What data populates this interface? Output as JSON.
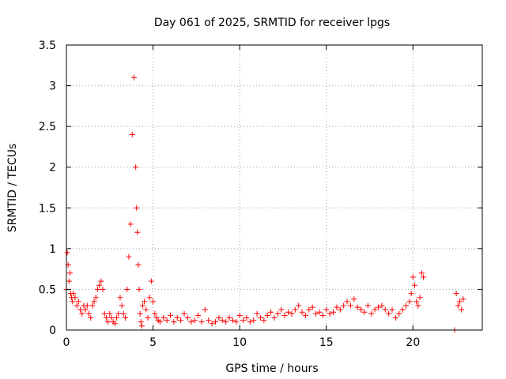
{
  "chart_data": {
    "type": "scatter",
    "title": "Day 061 of 2025, SRMTID for receiver lpgs",
    "xlabel": "GPS time / hours",
    "ylabel": "SRMTID / TECUs",
    "xlim": [
      0,
      24
    ],
    "ylim": [
      0,
      3.5
    ],
    "xticks": [
      0,
      5,
      10,
      15,
      20
    ],
    "yticks": [
      0,
      0.5,
      1,
      1.5,
      2,
      2.5,
      3,
      3.5
    ],
    "xtick_labels": [
      "0",
      "5",
      "10",
      "15",
      "20"
    ],
    "ytick_labels": [
      "0",
      "0.5",
      "1",
      "1.5",
      "2",
      "2.5",
      "3",
      "3.5"
    ],
    "grid": true,
    "marker": "+",
    "color": "#ff0000",
    "series": [
      {
        "name": "lpgs",
        "x": [
          0.0,
          0.05,
          0.1,
          0.15,
          0.2,
          0.25,
          0.3,
          0.35,
          0.4,
          0.5,
          0.6,
          0.7,
          0.8,
          0.9,
          1.0,
          1.1,
          1.2,
          1.3,
          1.4,
          1.5,
          1.6,
          1.7,
          1.8,
          1.9,
          2.0,
          2.1,
          2.2,
          2.3,
          2.4,
          2.5,
          2.6,
          2.7,
          2.8,
          2.9,
          3.0,
          3.1,
          3.2,
          3.3,
          3.4,
          3.5,
          3.6,
          3.7,
          3.8,
          3.9,
          4.0,
          4.05,
          4.1,
          4.15,
          4.2,
          4.25,
          4.3,
          4.35,
          4.4,
          4.5,
          4.6,
          4.7,
          4.8,
          4.9,
          5.0,
          5.1,
          5.2,
          5.3,
          5.4,
          5.6,
          5.8,
          6.0,
          6.2,
          6.4,
          6.6,
          6.8,
          7.0,
          7.2,
          7.4,
          7.6,
          7.8,
          8.0,
          8.2,
          8.4,
          8.6,
          8.8,
          9.0,
          9.2,
          9.4,
          9.6,
          9.8,
          10.0,
          10.2,
          10.4,
          10.6,
          10.8,
          11.0,
          11.2,
          11.4,
          11.6,
          11.8,
          12.0,
          12.2,
          12.4,
          12.6,
          12.8,
          13.0,
          13.2,
          13.4,
          13.6,
          13.8,
          14.0,
          14.2,
          14.4,
          14.6,
          14.8,
          15.0,
          15.2,
          15.4,
          15.6,
          15.8,
          16.0,
          16.2,
          16.4,
          16.6,
          16.8,
          17.0,
          17.2,
          17.4,
          17.6,
          17.8,
          18.0,
          18.2,
          18.4,
          18.6,
          18.8,
          19.0,
          19.2,
          19.4,
          19.6,
          19.8,
          19.9,
          20.0,
          20.1,
          20.2,
          20.3,
          20.4,
          20.5,
          20.6,
          22.4,
          22.5,
          22.6,
          22.7,
          22.8,
          22.9
        ],
        "y": [
          0.5,
          0.95,
          0.8,
          0.6,
          0.7,
          0.45,
          0.4,
          0.35,
          0.45,
          0.4,
          0.3,
          0.35,
          0.25,
          0.2,
          0.3,
          0.25,
          0.3,
          0.2,
          0.15,
          0.3,
          0.35,
          0.4,
          0.5,
          0.55,
          0.6,
          0.5,
          0.2,
          0.15,
          0.1,
          0.2,
          0.15,
          0.1,
          0.08,
          0.15,
          0.2,
          0.4,
          0.3,
          0.2,
          0.15,
          0.5,
          0.9,
          1.3,
          2.4,
          3.1,
          2.0,
          1.5,
          1.2,
          0.8,
          0.5,
          0.2,
          0.1,
          0.05,
          0.3,
          0.35,
          0.25,
          0.15,
          0.4,
          0.6,
          0.35,
          0.2,
          0.15,
          0.12,
          0.1,
          0.15,
          0.12,
          0.18,
          0.1,
          0.15,
          0.12,
          0.2,
          0.15,
          0.1,
          0.12,
          0.18,
          0.1,
          0.25,
          0.12,
          0.08,
          0.1,
          0.15,
          0.12,
          0.1,
          0.15,
          0.12,
          0.1,
          0.18,
          0.12,
          0.15,
          0.1,
          0.12,
          0.2,
          0.15,
          0.12,
          0.18,
          0.22,
          0.15,
          0.2,
          0.25,
          0.18,
          0.22,
          0.2,
          0.25,
          0.3,
          0.22,
          0.18,
          0.25,
          0.28,
          0.2,
          0.22,
          0.18,
          0.25,
          0.2,
          0.22,
          0.28,
          0.25,
          0.3,
          0.35,
          0.3,
          0.38,
          0.28,
          0.25,
          0.22,
          0.3,
          0.2,
          0.25,
          0.28,
          0.3,
          0.25,
          0.2,
          0.25,
          0.15,
          0.2,
          0.25,
          0.3,
          0.35,
          0.45,
          0.65,
          0.55,
          0.35,
          0.3,
          0.4,
          0.7,
          0.65,
          0.0,
          0.45,
          0.3,
          0.35,
          0.25,
          0.38
        ]
      }
    ]
  }
}
